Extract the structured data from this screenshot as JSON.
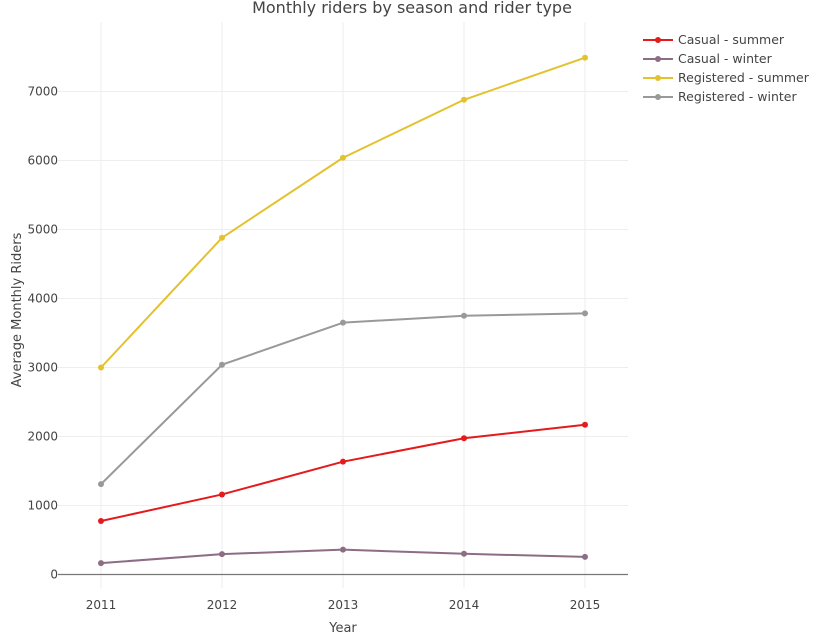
{
  "chart_data": {
    "type": "line",
    "title": "Monthly riders by season and rider type",
    "xlabel": "Year",
    "ylabel": "Average Monthly Riders",
    "x": [
      2011,
      2012,
      2013,
      2014,
      2015
    ],
    "x_tick_labels": [
      "2011",
      "2012",
      "2013",
      "2014",
      "2015"
    ],
    "ylim": [
      -200,
      7950
    ],
    "y_ticks": [
      0,
      1000,
      2000,
      3000,
      4000,
      5000,
      6000,
      7000
    ],
    "y_tick_labels": [
      "0",
      "1000",
      "2000",
      "3000",
      "4000",
      "5000",
      "6000",
      "7000"
    ],
    "grid": true,
    "legend_position": "top-right",
    "series": [
      {
        "name": "Casual - summer",
        "color": "#e41a1c",
        "values": [
          775,
          1160,
          1635,
          1975,
          2170
        ]
      },
      {
        "name": "Casual - winter",
        "color": "#8c6d83",
        "values": [
          165,
          295,
          360,
          300,
          255
        ]
      },
      {
        "name": "Registered - summer",
        "color": "#e3c22e",
        "values": [
          3000,
          4880,
          6040,
          6880,
          7490
        ]
      },
      {
        "name": "Registered - winter",
        "color": "#999999",
        "values": [
          1310,
          3040,
          3650,
          3750,
          3785
        ]
      }
    ]
  }
}
